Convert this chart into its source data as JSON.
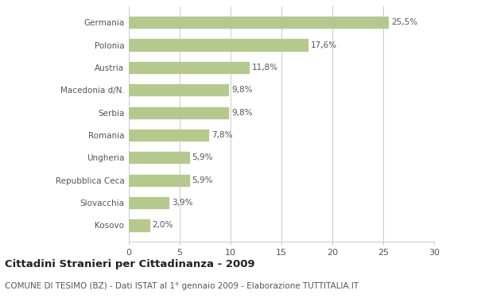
{
  "categories": [
    "Kosovo",
    "Slovacchia",
    "Repubblica Ceca",
    "Ungheria",
    "Romania",
    "Serbia",
    "Macedonia d/N.",
    "Austria",
    "Polonia",
    "Germania"
  ],
  "values": [
    2.0,
    3.9,
    5.9,
    5.9,
    7.8,
    9.8,
    9.8,
    11.8,
    17.6,
    25.5
  ],
  "labels": [
    "2,0%",
    "3,9%",
    "5,9%",
    "5,9%",
    "7,8%",
    "9,8%",
    "9,8%",
    "11,8%",
    "17,6%",
    "25,5%"
  ],
  "bar_color": "#b5c98e",
  "title": "Cittadini Stranieri per Cittadinanza - 2009",
  "subtitle": "COMUNE DI TESIMO (BZ) - Dati ISTAT al 1° gennaio 2009 - Elaborazione TUTTITALIA.IT",
  "xlim": [
    0,
    30
  ],
  "xticks": [
    0,
    5,
    10,
    15,
    20,
    25,
    30
  ],
  "background_color": "#ffffff",
  "grid_color": "#cccccc",
  "text_color": "#555555",
  "title_color": "#222222",
  "subtitle_color": "#555555",
  "title_fontsize": 9.5,
  "subtitle_fontsize": 7.5,
  "label_fontsize": 7.5,
  "tick_fontsize": 8,
  "bar_height": 0.5
}
